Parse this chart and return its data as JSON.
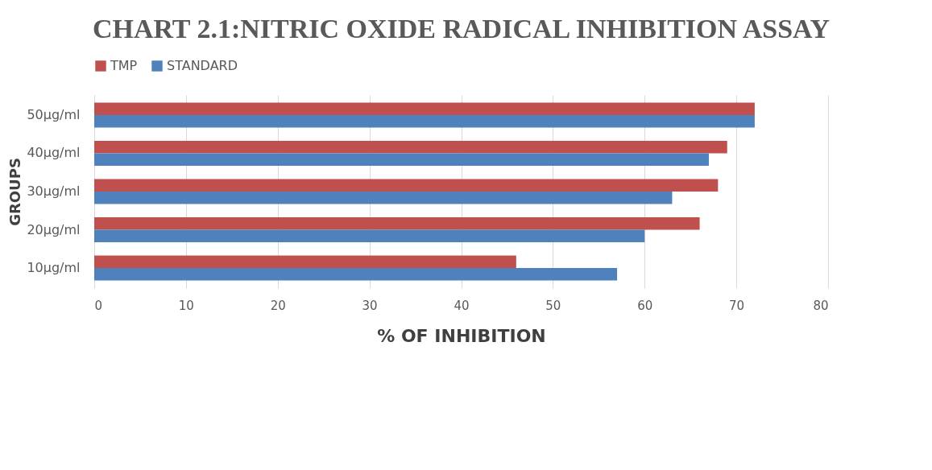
{
  "chart_data": {
    "type": "bar",
    "orientation": "horizontal",
    "title": "CHART 2.1:NITRIC OXIDE RADICAL INHIBITION ASSAY",
    "xlabel": "% OF INHIBITION",
    "ylabel": "GROUPS",
    "categories": [
      "50µg/ml",
      "40µg/ml",
      "30µg/ml",
      "20µg/ml",
      "10µg/ml"
    ],
    "series": [
      {
        "name": "TMP",
        "color": "#c0504d",
        "values": [
          72,
          69,
          68,
          66,
          46
        ]
      },
      {
        "name": "STANDARD",
        "color": "#4f81bd",
        "values": [
          72,
          67,
          63,
          60,
          57
        ]
      }
    ],
    "xlim": [
      0,
      80
    ],
    "xticks": [
      0,
      10,
      20,
      30,
      40,
      50,
      60,
      70,
      80
    ],
    "grid": "x",
    "legend": "top"
  }
}
